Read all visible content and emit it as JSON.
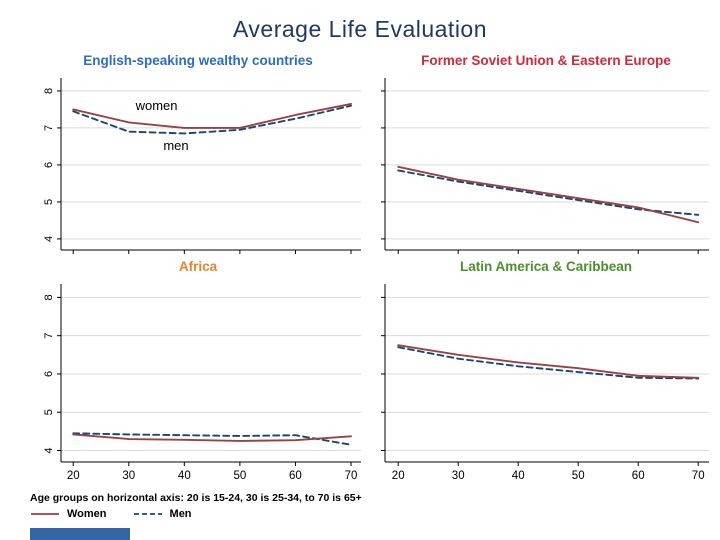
{
  "title": "Average Life Evaluation",
  "colors": {
    "title": "#1f3864",
    "women_line": "#9b4045",
    "men_line": "#1a476f",
    "grid": "#d9d9d9",
    "axis": "#000000",
    "tick_label": "#000000",
    "footer_bar": "#3465a4"
  },
  "chart_data": [
    {
      "type": "line",
      "title": "English-speaking wealthy countries",
      "title_color": "#2d6cc0",
      "x": [
        20,
        30,
        40,
        50,
        60,
        70
      ],
      "xlim": [
        17.8,
        71.8
      ],
      "ylim": [
        3.7,
        8.35
      ],
      "yticks": [
        4,
        5,
        6,
        7,
        8
      ],
      "grid": "horizontal",
      "show_y_labels": true,
      "show_x_labels": false,
      "series": [
        {
          "name": "Women",
          "style": "solid",
          "values": [
            7.5,
            7.15,
            7.0,
            7.0,
            7.35,
            7.65
          ]
        },
        {
          "name": "Men",
          "style": "dashed",
          "values": [
            7.45,
            6.9,
            6.85,
            6.95,
            7.25,
            7.6
          ]
        }
      ],
      "annotations": [
        {
          "text": "women",
          "x": 35,
          "y": 7.48
        },
        {
          "text": "men",
          "x": 38.5,
          "y": 6.4
        }
      ]
    },
    {
      "type": "line",
      "title": "Former Soviet Union & Eastern Europe",
      "title_color": "#d1293a",
      "x": [
        20,
        30,
        40,
        50,
        60,
        70
      ],
      "xlim": [
        17.8,
        71.8
      ],
      "ylim": [
        3.7,
        8.35
      ],
      "yticks": [
        4,
        5,
        6,
        7,
        8
      ],
      "grid": "horizontal",
      "show_y_labels": false,
      "show_x_labels": false,
      "series": [
        {
          "name": "Women",
          "style": "solid",
          "values": [
            5.95,
            5.6,
            5.35,
            5.1,
            4.85,
            4.45
          ]
        },
        {
          "name": "Men",
          "style": "dashed",
          "values": [
            5.85,
            5.55,
            5.3,
            5.05,
            4.8,
            4.65
          ]
        }
      ],
      "annotations": []
    },
    {
      "type": "line",
      "title": "Africa",
      "title_color": "#e8832c",
      "x": [
        20,
        30,
        40,
        50,
        60,
        70
      ],
      "xlim": [
        17.8,
        71.8
      ],
      "ylim": [
        3.7,
        8.35
      ],
      "yticks": [
        4,
        5,
        6,
        7,
        8
      ],
      "grid": "horizontal",
      "show_y_labels": true,
      "show_x_labels": true,
      "series": [
        {
          "name": "Women",
          "style": "solid",
          "values": [
            4.42,
            4.3,
            4.28,
            4.25,
            4.27,
            4.37
          ]
        },
        {
          "name": "Men",
          "style": "dashed",
          "values": [
            4.45,
            4.42,
            4.4,
            4.38,
            4.4,
            4.15
          ]
        }
      ],
      "annotations": []
    },
    {
      "type": "line",
      "title": "Latin America & Caribbean",
      "title_color": "#4c8f2f",
      "x": [
        20,
        30,
        40,
        50,
        60,
        70
      ],
      "xlim": [
        17.8,
        71.8
      ],
      "ylim": [
        3.7,
        8.35
      ],
      "yticks": [
        4,
        5,
        6,
        7,
        8
      ],
      "grid": "horizontal",
      "show_y_labels": false,
      "show_x_labels": true,
      "series": [
        {
          "name": "Women",
          "style": "solid",
          "values": [
            6.75,
            6.5,
            6.3,
            6.15,
            5.95,
            5.9
          ]
        },
        {
          "name": "Men",
          "style": "dashed",
          "values": [
            6.7,
            6.4,
            6.2,
            6.05,
            5.9,
            5.88
          ]
        }
      ],
      "annotations": []
    }
  ],
  "footer": {
    "note": "Age groups on horizontal axis: 20 is 15-24, 30 is 25-34, to 70 is 65+",
    "legend": [
      {
        "label": "Women",
        "line_style": "solid",
        "color": "#9b4045"
      },
      {
        "label": "Men",
        "line_style": "dashed",
        "color": "#1a476f"
      }
    ]
  }
}
